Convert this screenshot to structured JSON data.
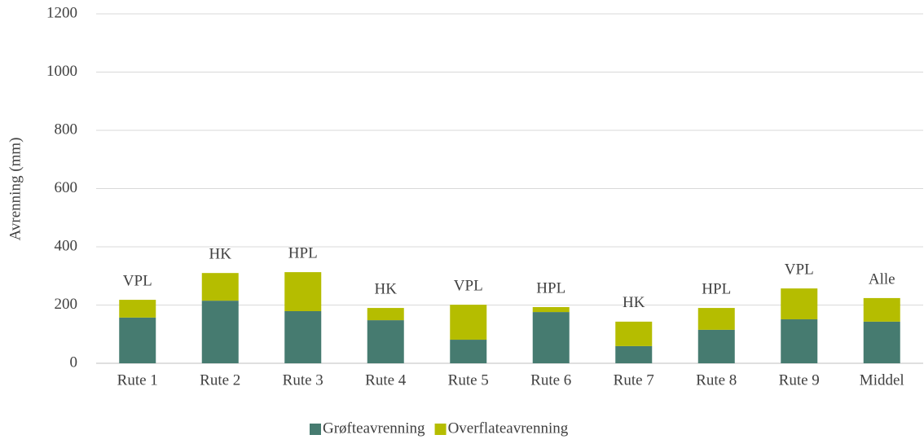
{
  "chart_data": {
    "type": "stacked_bar",
    "ylabel": "Avrenning (mm)",
    "categories": [
      "Rute 1",
      "Rute 2",
      "Rute 3",
      "Rute 4",
      "Rute 5",
      "Rute 6",
      "Rute 7",
      "Rute 8",
      "Rute 9",
      "Middel"
    ],
    "annotations": [
      "VPL",
      "HK",
      "HPL",
      "HK",
      "VPL",
      "HPL",
      "HK",
      "HPL",
      "VPL",
      "Alle"
    ],
    "series": [
      {
        "name": "Grøfteavrenning",
        "color": "#467b70",
        "values": [
          157,
          215,
          179,
          148,
          81,
          176,
          59,
          115,
          151,
          143
        ]
      },
      {
        "name": "Overflateavrenning",
        "color": "#b5bd00",
        "values": [
          61,
          95,
          134,
          42,
          120,
          17,
          84,
          75,
          106,
          81
        ]
      }
    ],
    "ylim": [
      0,
      1200
    ],
    "yticks": [
      0,
      200,
      400,
      600,
      800,
      1000,
      1200
    ],
    "grid": true,
    "legend": "bottom"
  }
}
